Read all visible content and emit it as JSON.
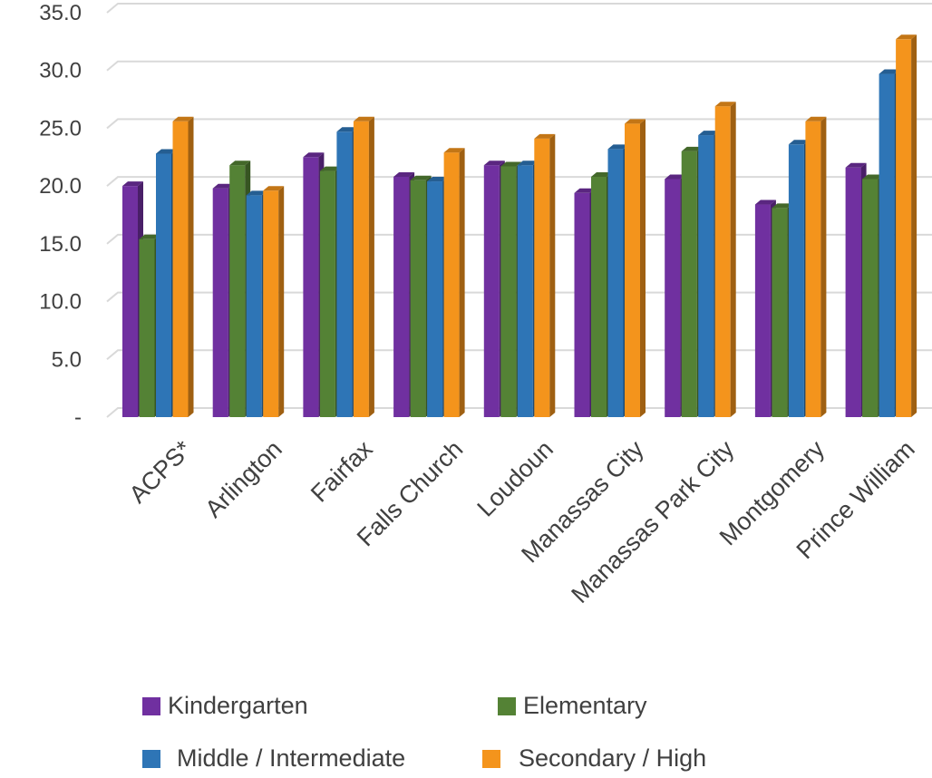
{
  "chart_data": {
    "type": "bar",
    "title": "",
    "xlabel": "",
    "ylabel": "",
    "ylim": [
      0,
      35
    ],
    "ytick_values": [
      0,
      5,
      10,
      15,
      20,
      25,
      30,
      35
    ],
    "ytick_labels": [
      "-",
      "5.0",
      "10.0",
      "15.0",
      "20.0",
      "25.0",
      "30.0",
      "35.0"
    ],
    "grid": true,
    "legend_position": "bottom",
    "categories": [
      "ACPS*",
      "Arlington",
      "Fairfax",
      "Falls Church",
      "Loudoun",
      "Manassas City",
      "Manassas Park City",
      "Montgomery",
      "Prince William"
    ],
    "series": [
      {
        "name": "Kindergarten",
        "color": "#7030A0",
        "values": [
          20.0,
          19.8,
          22.5,
          20.8,
          21.8,
          19.4,
          20.6,
          18.4,
          21.6
        ]
      },
      {
        "name": "Elementary",
        "color": "#548235",
        "values": [
          15.4,
          21.8,
          21.3,
          20.5,
          21.7,
          20.8,
          23.0,
          18.1,
          20.6
        ]
      },
      {
        "name": "Middle / Intermediate",
        "color": "#2E75B6",
        "values": [
          22.8,
          19.2,
          24.7,
          20.4,
          21.8,
          23.2,
          24.4,
          23.6,
          29.7
        ]
      },
      {
        "name": "Secondary / High",
        "color": "#F4941C",
        "values": [
          25.6,
          19.6,
          25.6,
          22.9,
          24.1,
          25.4,
          26.9,
          25.6,
          32.7
        ]
      }
    ]
  }
}
